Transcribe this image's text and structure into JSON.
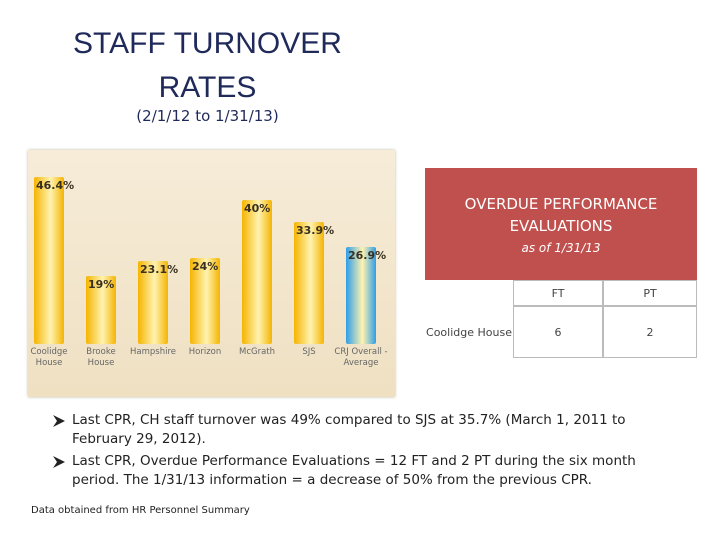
{
  "title": "STAFF TURNOVER RATES",
  "subtitle": "(2/1/12 to 1/31/13)",
  "chart_data": {
    "type": "bar",
    "categories": [
      "Coolidge House",
      "Brooke House",
      "Hampshire",
      "Horizon",
      "McGrath",
      "SJS",
      "CRJ Overall - Average"
    ],
    "values": [
      46.4,
      19,
      23.1,
      24,
      40,
      33.9,
      26.9
    ],
    "value_labels": [
      "46.4%",
      "19%",
      "23.1%",
      "24%",
      "40%",
      "33.9%",
      "26.9%"
    ],
    "colors": [
      "#f5b400",
      "#f5b400",
      "#f5b400",
      "#f5b400",
      "#f5b400",
      "#f5b400",
      "#2e9ee8"
    ]
  },
  "table": {
    "title": "OVERDUE PERFORMANCE EVALUATIONS",
    "subtitle": "as of 1/31/13",
    "columns": [
      "FT",
      "PT"
    ],
    "rows": [
      [
        "Coolidge House",
        "6",
        "2"
      ]
    ]
  },
  "bullets": [
    "Last CPR, CH staff turnover was 49% compared to SJS at 35.7% (March 1, 2011 to February 29, 2012).",
    "Last CPR, Overdue Performance Evaluations = 12 FT and 2 PT during the six month period. The 1/31/13 information = a decrease of 50% from the previous CPR."
  ],
  "footnote": "Data obtained from HR Personnel Summary"
}
